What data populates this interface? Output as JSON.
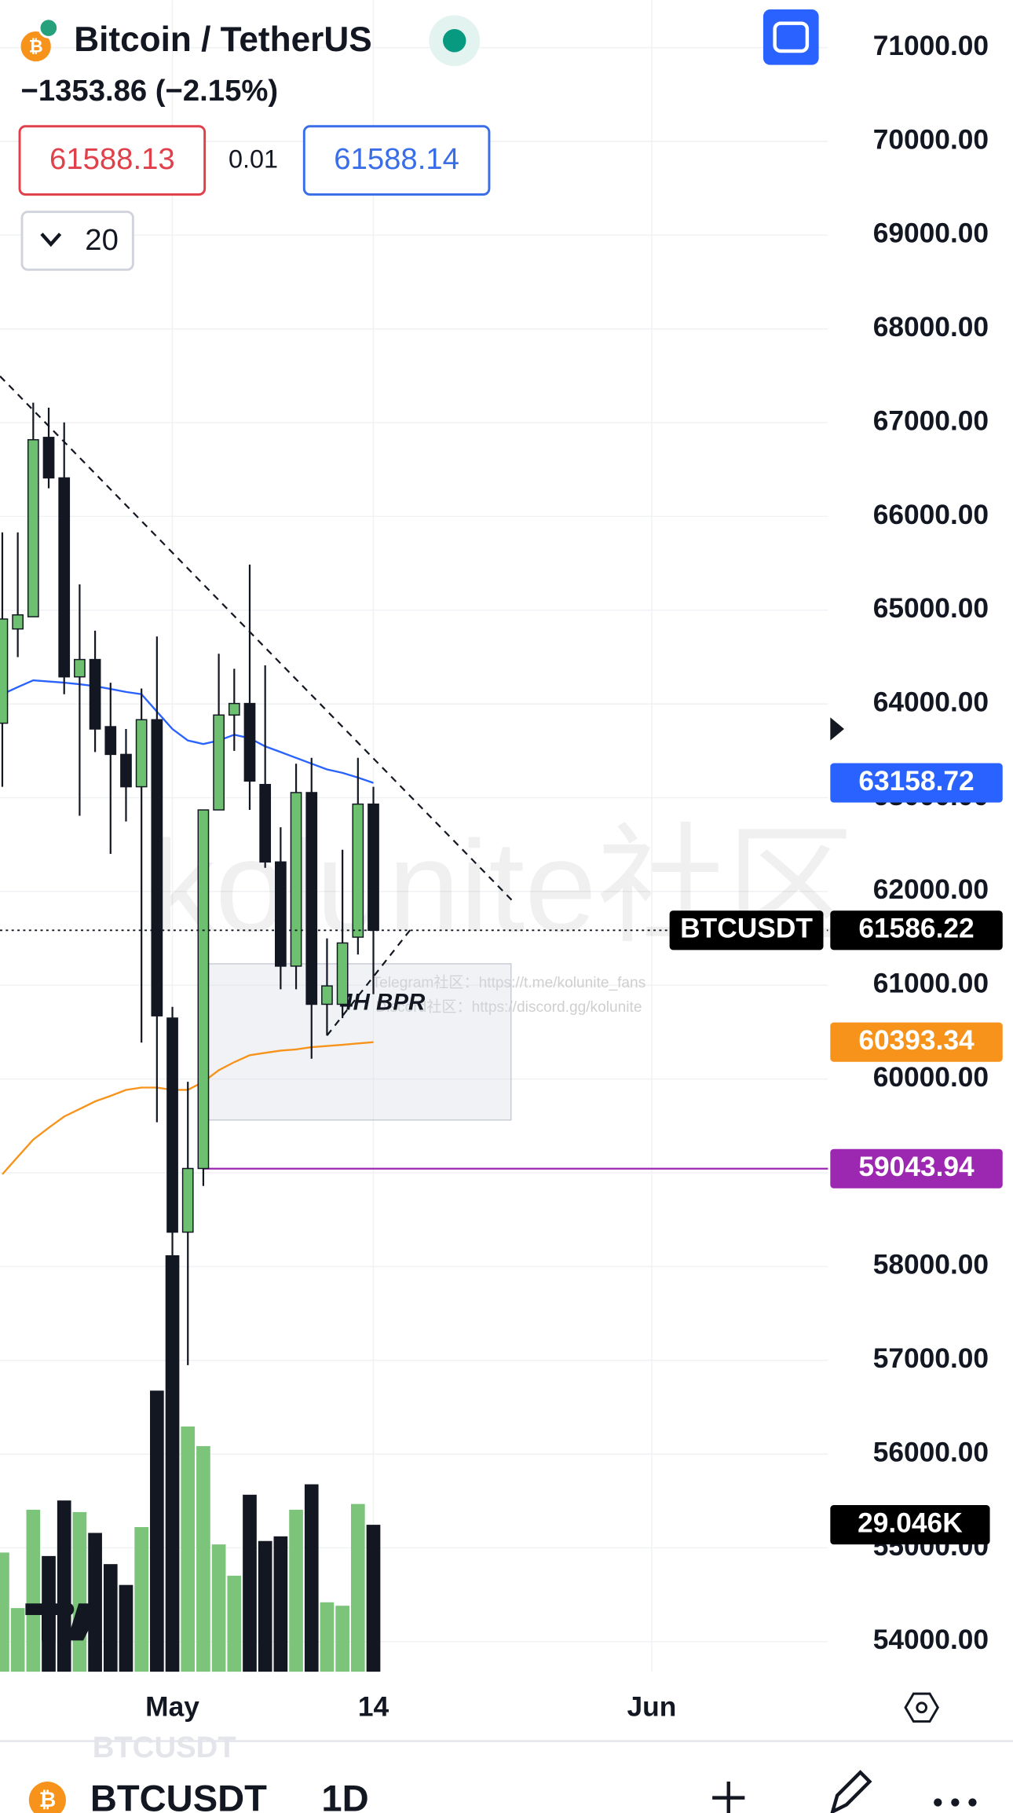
{
  "header": {
    "title": "Bitcoin / TetherUS",
    "change": "−1353.86 (−2.15%)",
    "bid": "61588.13",
    "spread": "0.01",
    "ask": "61588.14",
    "interval_menu": "20"
  },
  "watermark": {
    "brand": "kolunite社区",
    "telegram": "Telegram社区：https://t.me/kolunite_fans",
    "discord": "Discord社区：https://discord.gg/kolunite"
  },
  "footer": {
    "symbol": "BTCUSDT",
    "interval": "1D"
  },
  "chart_data": {
    "type": "candlestick",
    "symbol": "BTCUSDT",
    "open": [
      63795,
      64800,
      64930,
      66843,
      66411,
      64289,
      64474,
      63758,
      63462,
      63117,
      63832,
      60650,
      58367,
      59046,
      62870,
      63882,
      64005,
      63141,
      62315,
      61204,
      63055,
      60797,
      60797,
      61513,
      62932
    ],
    "high": [
      65830,
      65830,
      67213,
      67160,
      67003,
      65276,
      64782,
      64227,
      63733,
      64165,
      64720,
      60770,
      59971,
      62870,
      64535,
      64375,
      65486,
      64412,
      62685,
      63363,
      63425,
      61500,
      62445,
      63425,
      63117
    ],
    "low": [
      63117,
      64500,
      64930,
      66300,
      64104,
      62808,
      63487,
      62401,
      62747,
      60389,
      59539,
      58100,
      56948,
      58860,
      62870,
      63500,
      62870,
      62253,
      60957,
      60957,
      60217,
      60464,
      60649,
      61328,
      60905
    ],
    "close": [
      64906,
      64950,
      66818,
      66411,
      64289,
      64474,
      63733,
      63462,
      63117,
      63832,
      60674,
      58367,
      59046,
      62870,
      63882,
      64005,
      63178,
      62315,
      61204,
      63055,
      60797,
      60993,
      61451,
      62932,
      61586.22
    ],
    "up_color": "#6cc070",
    "down_color": "#131722",
    "volume": {
      "values": [
        23.56,
        12.58,
        32.02,
        22.87,
        33.85,
        31.56,
        27.44,
        21.27,
        17.15,
        28.59,
        55.57,
        82.33,
        48.48,
        44.6,
        25.16,
        18.98,
        34.99,
        25.84,
        26.76,
        32.02,
        37.05,
        13.72,
        13.04,
        33.16,
        29.046
      ],
      "last_label": "29.046K"
    },
    "moving_averages": [
      {
        "color": "#2962ff",
        "values": [
          64104,
          64180,
          64252,
          64240,
          64227,
          64210,
          64190,
          64160,
          64128,
          64104,
          63918,
          63733,
          63610,
          63573,
          63610,
          63672,
          63635,
          63548,
          63487,
          63425,
          63363,
          63302,
          63265,
          63215,
          63158.72
        ]
      },
      {
        "color": "#f7931a",
        "values": [
          58984,
          59170,
          59354,
          59480,
          59600,
          59680,
          59761,
          59820,
          59884,
          59909,
          59909,
          59884,
          59884,
          59970,
          60094,
          60180,
          60254,
          60279,
          60303,
          60316,
          60340,
          60352,
          60365,
          60380,
          60393.34
        ]
      }
    ],
    "hline": {
      "value": 59043.94,
      "color": "#9c27b0",
      "from_x": 13.0
    },
    "last_price": 61586.22,
    "trendlines": [
      {
        "x": [
          -0.15,
          33.1
        ],
        "y": [
          67496,
          61883
        ]
      },
      {
        "x": [
          21.0,
          26.6
        ],
        "y": [
          60464,
          61636
        ]
      }
    ],
    "zone": {
      "label": "4H BPR",
      "x": [
        13.3,
        32.9
      ],
      "y": [
        61229,
        59563
      ]
    },
    "xlim": [
      -0.15,
      53.4
    ],
    "xticks": [
      {
        "value": 11,
        "label": "May"
      },
      {
        "value": 24,
        "label": "14"
      },
      {
        "value": 42,
        "label": "Jun"
      }
    ],
    "ylim": [
      53679,
      71506
    ],
    "yticks": [
      {
        "value": 54000,
        "label": "54000.00"
      },
      {
        "value": 55000,
        "label": "55000.00"
      },
      {
        "value": 56000,
        "label": "56000.00"
      },
      {
        "value": 57000,
        "label": "57000.00"
      },
      {
        "value": 58000,
        "label": "58000.00"
      },
      {
        "value": 59000,
        "label": "59000.00"
      },
      {
        "value": 60000,
        "label": "60000.00"
      },
      {
        "value": 61000,
        "label": "61000.00"
      },
      {
        "value": 62000,
        "label": "62000.00"
      },
      {
        "value": 63000,
        "label": "63000.00"
      },
      {
        "value": 64000,
        "label": "64000.00"
      },
      {
        "value": 65000,
        "label": "65000.00"
      },
      {
        "value": 66000,
        "label": "66000.00"
      },
      {
        "value": 67000,
        "label": "67000.00"
      },
      {
        "value": 68000,
        "label": "68000.00"
      },
      {
        "value": 69000,
        "label": "69000.00"
      },
      {
        "value": 70000,
        "label": "70000.00"
      },
      {
        "value": 71000,
        "label": "71000.00"
      }
    ],
    "grid": true
  }
}
